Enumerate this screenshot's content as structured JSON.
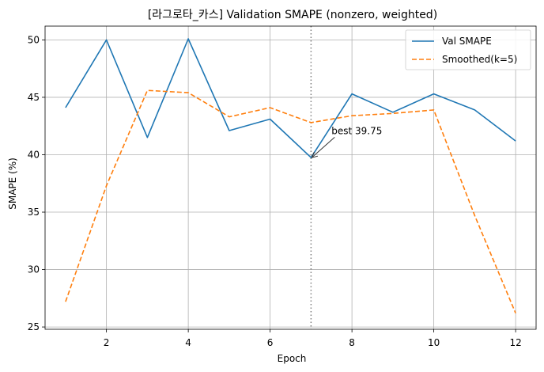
{
  "chart_data": {
    "type": "line",
    "title": "[라그로타_카스] Validation SMAPE (nonzero, weighted)",
    "xlabel": "Epoch",
    "ylabel": "SMAPE (%)",
    "xlim": [
      0.5,
      12.5
    ],
    "ylim": [
      24.8,
      51.2
    ],
    "xticks": [
      2,
      4,
      6,
      8,
      10,
      12
    ],
    "yticks": [
      25,
      30,
      35,
      40,
      45,
      50
    ],
    "grid": true,
    "legend_position": "top-right",
    "x": [
      1,
      2,
      3,
      4,
      5,
      6,
      7,
      8,
      9,
      10,
      11,
      12
    ],
    "series": [
      {
        "name": "Val SMAPE",
        "color": "#1f77b4",
        "style": "solid",
        "values": [
          44.1,
          50.0,
          41.5,
          50.1,
          42.1,
          43.1,
          39.75,
          45.3,
          43.7,
          45.3,
          43.9,
          41.2
        ]
      },
      {
        "name": "Smoothed(k=5)",
        "color": "#ff7f0e",
        "style": "dashed",
        "values": [
          27.2,
          37.3,
          45.6,
          45.4,
          43.3,
          44.1,
          42.8,
          43.4,
          43.6,
          43.9,
          34.7,
          26.2
        ]
      }
    ],
    "best_line": {
      "x": 7,
      "color": "#808080"
    },
    "annotation": {
      "text": "best 39.75",
      "x": 7,
      "y": 39.75,
      "text_x": 7.5,
      "text_y": 41.8
    }
  }
}
